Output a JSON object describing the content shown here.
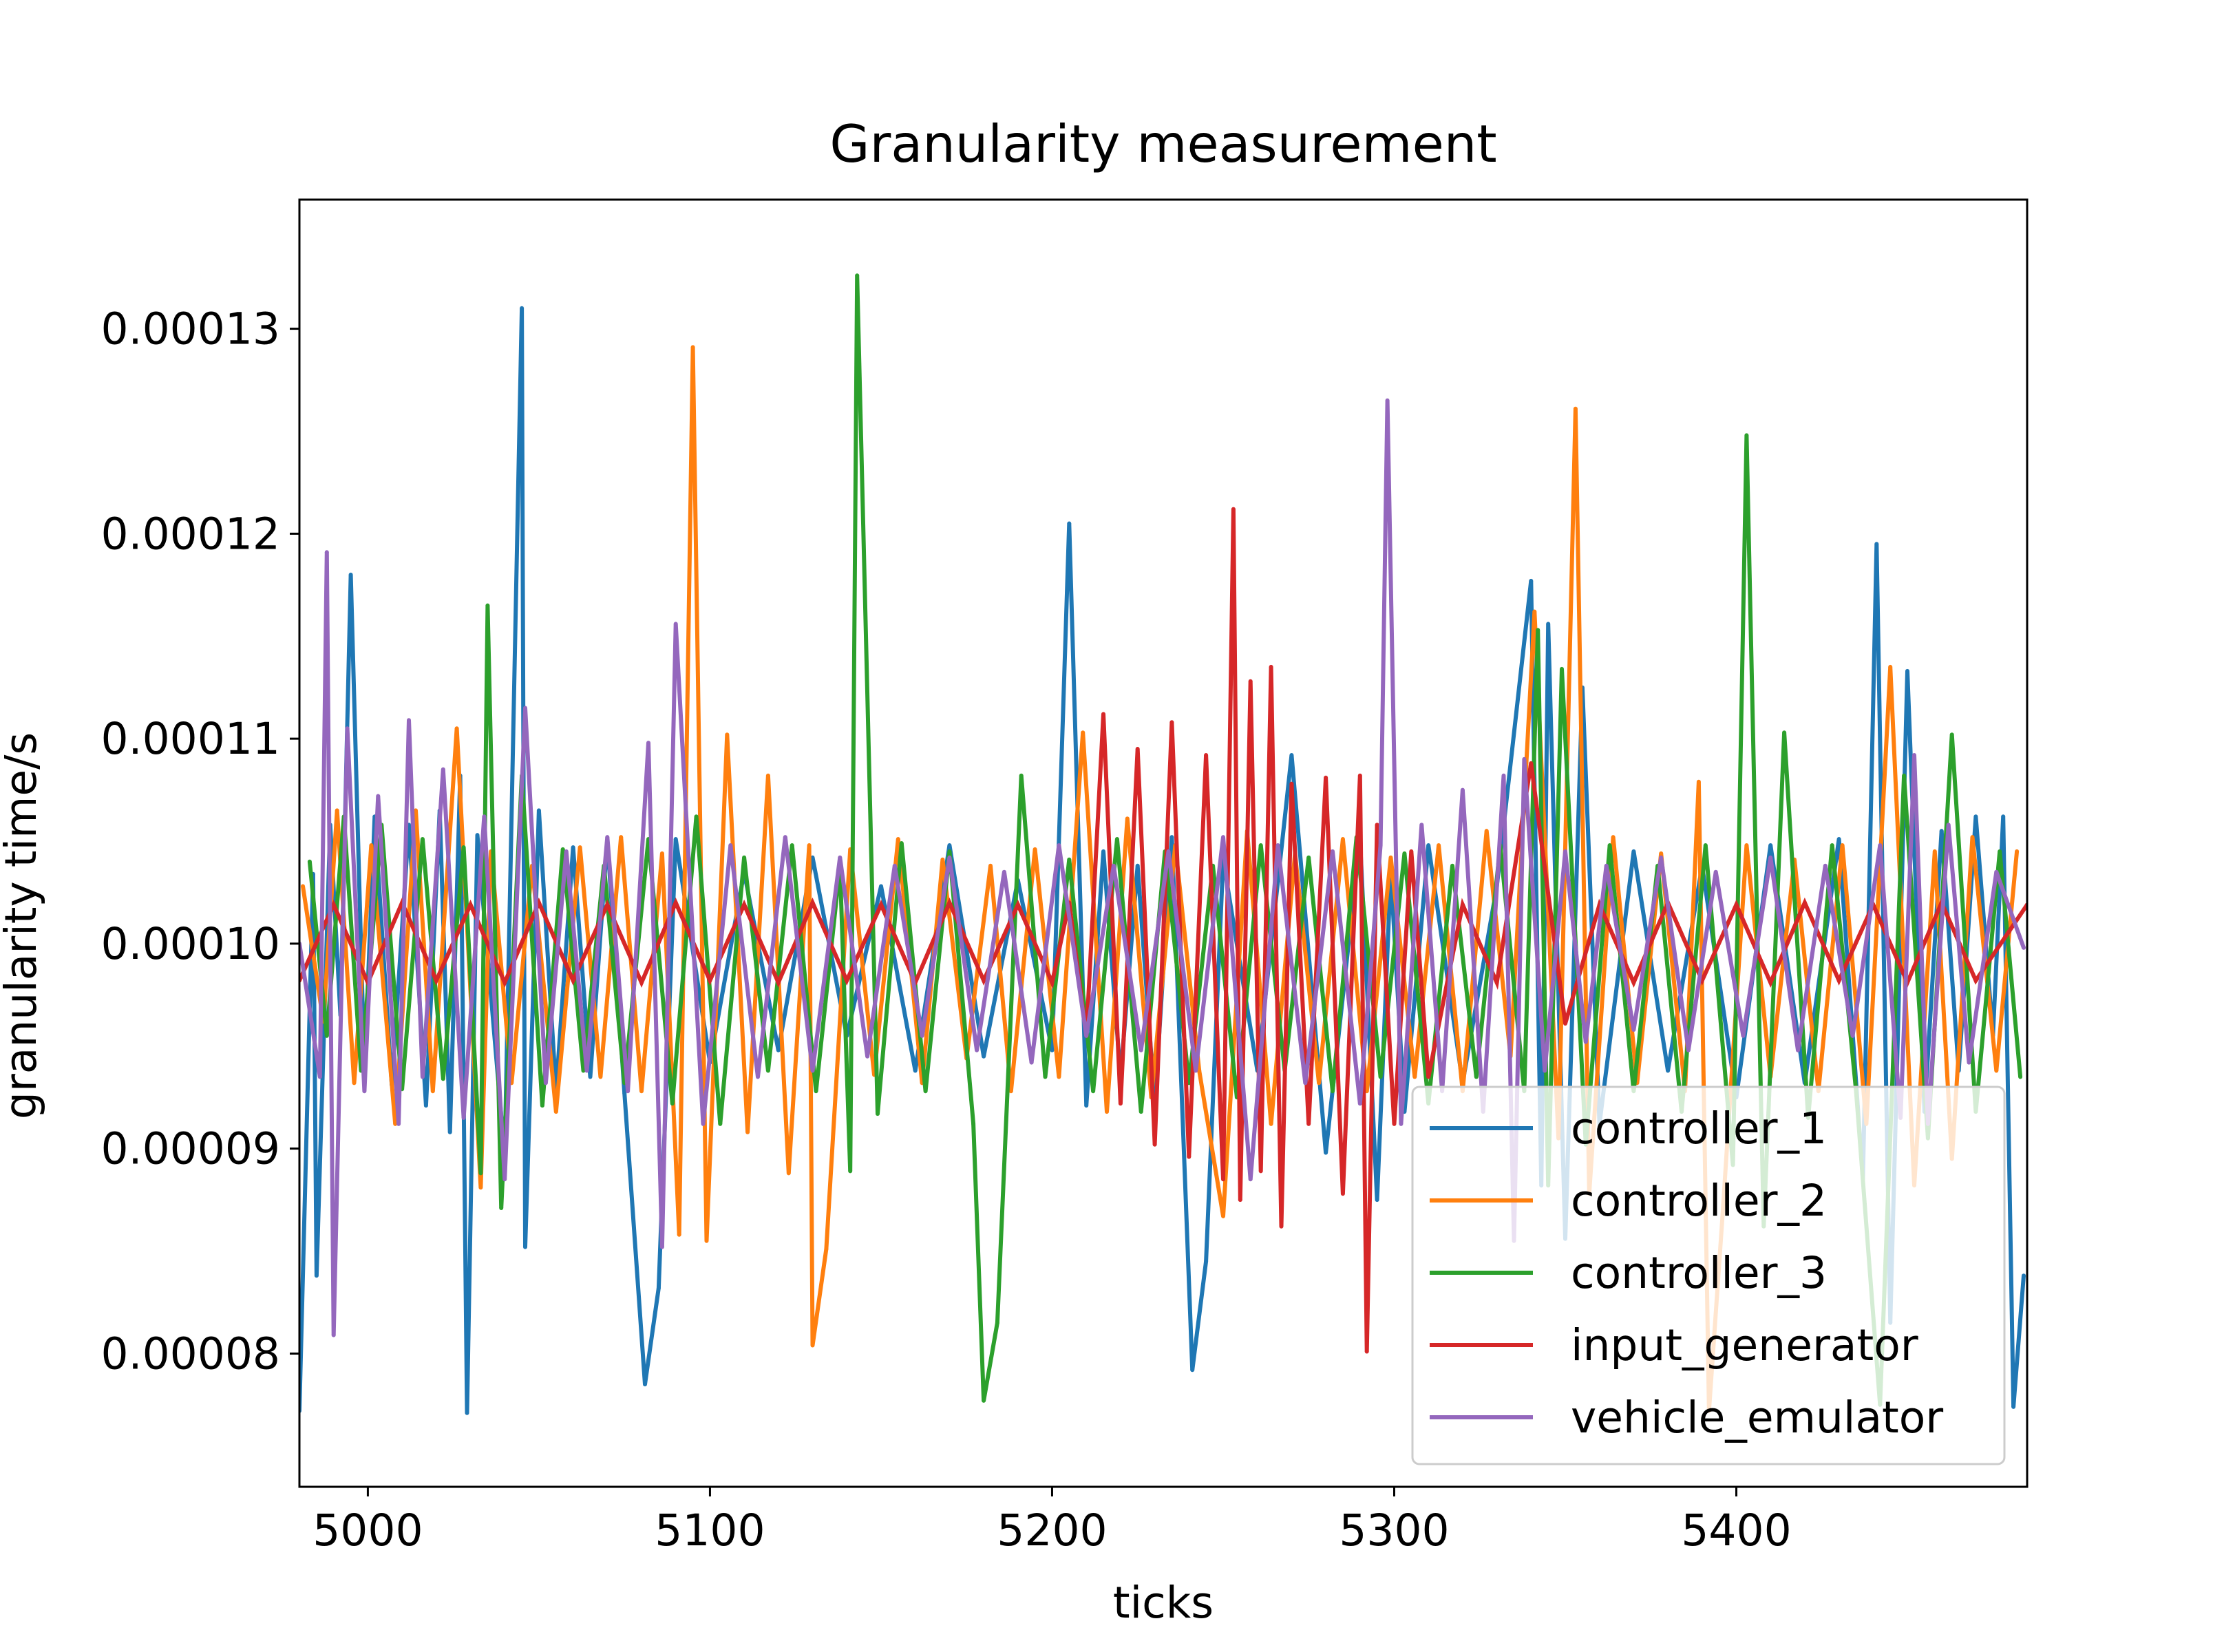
{
  "chart_data": {
    "type": "line",
    "title": "Granularity measurement",
    "xlabel": "ticks",
    "ylabel": "granularity time/s",
    "xlim": [
      4980,
      5485
    ],
    "ylim": [
      7.35e-05,
      0.0001363
    ],
    "xticks": [
      5000,
      5100,
      5200,
      5300,
      5400
    ],
    "xtick_labels": [
      "5000",
      "5100",
      "5200",
      "5300",
      "5400"
    ],
    "yticks": [
      8e-05,
      9e-05,
      0.0001,
      0.00011,
      0.00012,
      0.00013
    ],
    "ytick_labels": [
      "0.00008",
      "0.00009",
      "0.00010",
      "0.00011",
      "0.00012",
      "0.00013"
    ],
    "grid": false,
    "legend_position": "lower-right",
    "series": [
      {
        "name": "controller_1",
        "color": "#1f77b4",
        "x": [
          4980,
          4984,
          4985,
          4989,
          4992,
          4995,
          4999,
          5002,
          5007,
          5012,
          5017,
          5021,
          5024,
          5027,
          5029,
          5032,
          5040,
          5045,
          5046,
          5050,
          5055,
          5060,
          5065,
          5070,
          5075,
          5081,
          5085,
          5090,
          5100,
          5110,
          5120,
          5130,
          5140,
          5150,
          5160,
          5170,
          5180,
          5190,
          5200,
          5205,
          5210,
          5215,
          5220,
          5225,
          5230,
          5235,
          5241,
          5245,
          5250,
          5260,
          5270,
          5280,
          5290,
          5295,
          5299,
          5303,
          5310,
          5320,
          5330,
          5340,
          5343,
          5345,
          5350,
          5355,
          5360,
          5370,
          5380,
          5390,
          5400,
          5410,
          5420,
          5430,
          5437,
          5441,
          5445,
          5450,
          5455,
          5460,
          5465,
          5470,
          5475,
          5478,
          5481,
          5484
        ],
        "y": [
          7.72e-05,
          0.0001034,
          8.38e-05,
          0.0001058,
          9.65e-05,
          0.000118,
          9.38e-05,
          0.0001062,
          9.31e-05,
          0.0001058,
          9.21e-05,
          0.0001065,
          9.08e-05,
          0.0001082,
          7.71e-05,
          0.0001053,
          8.96e-05,
          0.000131,
          8.52e-05,
          0.0001065,
          9.28e-05,
          0.0001047,
          9.35e-05,
          0.0001051,
          9.27e-05,
          7.85e-05,
          8.32e-05,
          0.0001051,
          9.42e-05,
          0.0001035,
          9.48e-05,
          0.0001042,
          9.55e-05,
          0.0001028,
          9.38e-05,
          0.0001048,
          9.45e-05,
          0.0001031,
          9.48e-05,
          0.0001205,
          9.21e-05,
          0.0001045,
          9.35e-05,
          0.0001038,
          9.22e-05,
          0.0001052,
          7.92e-05,
          8.45e-05,
          0.0001041,
          9.38e-05,
          0.0001092,
          8.98e-05,
          0.0001051,
          8.75e-05,
          0.0001035,
          9.18e-05,
          0.0001048,
          9.32e-05,
          0.0001028,
          0.0001177,
          8.82e-05,
          0.0001156,
          8.56e-05,
          0.0001125,
          9.12e-05,
          0.0001045,
          9.38e-05,
          0.0001038,
          9.25e-05,
          0.0001048,
          9.32e-05,
          0.0001051,
          8.85e-05,
          0.0001195,
          8.15e-05,
          0.0001133,
          9.18e-05,
          0.0001055,
          9.38e-05,
          0.0001062,
          9.55e-05,
          0.0001062,
          7.74e-05,
          8.38e-05
        ]
      },
      {
        "name": "controller_2",
        "color": "#ff7f0e",
        "x": [
          4981,
          4987,
          4991,
          4996,
          5001,
          5008,
          5014,
          5019,
          5026,
          5033,
          5036,
          5042,
          5048,
          5055,
          5062,
          5068,
          5074,
          5080,
          5086,
          5091,
          5095,
          5099,
          5105,
          5111,
          5117,
          5123,
          5129,
          5130,
          5134,
          5141,
          5148,
          5155,
          5162,
          5168,
          5175,
          5182,
          5188,
          5195,
          5202,
          5209,
          5216,
          5222,
          5229,
          5236,
          5243,
          5250,
          5257,
          5264,
          5271,
          5278,
          5285,
          5292,
          5299,
          5306,
          5313,
          5320,
          5327,
          5334,
          5341,
          5348,
          5353,
          5357,
          5364,
          5371,
          5378,
          5385,
          5389,
          5392,
          5396,
          5403,
          5410,
          5417,
          5424,
          5431,
          5438,
          5445,
          5452,
          5458,
          5463,
          5469,
          5476,
          5482
        ],
        "y": [
          0.0001028,
          9.62e-05,
          0.0001065,
          9.32e-05,
          0.0001048,
          9.12e-05,
          0.0001065,
          9.28e-05,
          0.0001105,
          8.81e-05,
          0.0001045,
          9.32e-05,
          0.0001038,
          9.18e-05,
          0.0001047,
          9.35e-05,
          0.0001052,
          9.28e-05,
          0.0001044,
          8.58e-05,
          0.0001291,
          8.55e-05,
          0.0001102,
          9.08e-05,
          0.0001082,
          8.88e-05,
          0.0001048,
          8.04e-05,
          8.51e-05,
          0.0001046,
          9.36e-05,
          0.0001051,
          9.32e-05,
          0.0001041,
          9.44e-05,
          0.0001038,
          9.28e-05,
          0.0001046,
          9.35e-05,
          0.0001103,
          9.18e-05,
          0.0001061,
          9.25e-05,
          0.0001048,
          9.38e-05,
          8.67e-05,
          0.0001055,
          9.12e-05,
          0.0001044,
          9.32e-05,
          0.0001051,
          9.28e-05,
          0.0001042,
          9.35e-05,
          0.0001048,
          9.28e-05,
          0.0001055,
          9.45e-05,
          0.0001162,
          9.05e-05,
          0.0001261,
          8.78e-05,
          0.0001052,
          9.32e-05,
          0.0001044,
          9.28e-05,
          0.0001079,
          7.72e-05,
          8.68e-05,
          0.0001048,
          9.35e-05,
          0.0001041,
          9.28e-05,
          0.0001048,
          9.12e-05,
          0.0001135,
          8.82e-05,
          0.0001045,
          8.95e-05,
          0.0001052,
          9.38e-05,
          0.0001045
        ]
      },
      {
        "name": "controller_3",
        "color": "#2ca02c",
        "x": [
          4983,
          4988,
          4993,
          4998,
          5004,
          5010,
          5016,
          5022,
          5028,
          5033,
          5035,
          5039,
          5045,
          5051,
          5057,
          5063,
          5069,
          5075,
          5082,
          5089,
          5096,
          5103,
          5110,
          5117,
          5124,
          5131,
          5138,
          5141,
          5143,
          5149,
          5156,
          5163,
          5170,
          5177,
          5180,
          5184,
          5191,
          5198,
          5205,
          5212,
          5219,
          5226,
          5233,
          5240,
          5247,
          5254,
          5261,
          5268,
          5275,
          5282,
          5289,
          5296,
          5303,
          5310,
          5317,
          5324,
          5331,
          5338,
          5342,
          5345,
          5349,
          5356,
          5363,
          5370,
          5377,
          5384,
          5391,
          5399,
          5403,
          5408,
          5414,
          5421,
          5428,
          5435,
          5442,
          5449,
          5456,
          5463,
          5470,
          5477,
          5483
        ],
        "y": [
          0.000104,
          9.55e-05,
          0.0001062,
          9.38e-05,
          0.0001058,
          9.29e-05,
          0.0001051,
          9.34e-05,
          0.0001047,
          8.88e-05,
          0.0001165,
          8.71e-05,
          0.0001082,
          9.21e-05,
          0.0001046,
          9.38e-05,
          0.0001038,
          9.32e-05,
          0.0001051,
          9.22e-05,
          0.0001062,
          9.12e-05,
          0.0001042,
          9.38e-05,
          0.0001048,
          9.28e-05,
          0.0001038,
          8.89e-05,
          0.0001326,
          9.17e-05,
          0.0001049,
          9.28e-05,
          0.0001045,
          9.12e-05,
          7.77e-05,
          8.15e-05,
          0.0001082,
          9.35e-05,
          0.0001041,
          9.28e-05,
          0.0001051,
          9.18e-05,
          0.0001045,
          9.32e-05,
          0.0001038,
          9.25e-05,
          0.0001048,
          9.38e-05,
          0.0001042,
          9.28e-05,
          0.0001052,
          9.35e-05,
          0.0001044,
          9.22e-05,
          0.0001038,
          9.35e-05,
          0.0001048,
          9.28e-05,
          0.0001153,
          8.82e-05,
          0.0001134,
          9.02e-05,
          0.0001048,
          9.28e-05,
          0.0001038,
          9.18e-05,
          0.0001048,
          8.92e-05,
          0.0001248,
          8.62e-05,
          0.0001103,
          9.15e-05,
          0.0001048,
          9.28e-05,
          7.75e-05,
          0.0001082,
          9.05e-05,
          0.0001102,
          9.18e-05,
          0.0001045,
          9.35e-05
        ]
      },
      {
        "name": "input_generator",
        "color": "#d62728",
        "x": [
          4980,
          4990,
          5000,
          5010,
          5020,
          5030,
          5040,
          5050,
          5060,
          5070,
          5080,
          5090,
          5100,
          5110,
          5120,
          5130,
          5140,
          5150,
          5160,
          5170,
          5180,
          5190,
          5200,
          5205,
          5210,
          5215,
          5220,
          5225,
          5230,
          5235,
          5240,
          5245,
          5250,
          5253,
          5255,
          5258,
          5261,
          5264,
          5267,
          5270,
          5275,
          5280,
          5285,
          5290,
          5292,
          5295,
          5300,
          5305,
          5310,
          5320,
          5330,
          5340,
          5350,
          5360,
          5370,
          5380,
          5390,
          5400,
          5410,
          5420,
          5430,
          5440,
          5450,
          5460,
          5470,
          5485
        ],
        "y": [
          9.82e-05,
          0.0001019,
          9.81e-05,
          0.000102,
          9.82e-05,
          0.0001019,
          9.81e-05,
          0.000102,
          9.82e-05,
          0.0001019,
          9.81e-05,
          0.000102,
          9.82e-05,
          0.0001019,
          9.81e-05,
          0.000102,
          9.82e-05,
          0.0001019,
          9.81e-05,
          0.000102,
          9.82e-05,
          0.0001019,
          9.81e-05,
          0.000102,
          9.55e-05,
          0.0001112,
          9.22e-05,
          0.0001095,
          9.02e-05,
          0.0001108,
          8.96e-05,
          0.0001092,
          8.85e-05,
          0.0001212,
          8.75e-05,
          0.0001128,
          8.89e-05,
          0.0001135,
          8.62e-05,
          0.0001078,
          9.12e-05,
          0.0001081,
          8.78e-05,
          0.0001082,
          8.01e-05,
          0.0001058,
          9.12e-05,
          0.0001045,
          9.35e-05,
          0.0001019,
          9.81e-05,
          0.0001088,
          9.61e-05,
          0.0001019,
          9.81e-05,
          0.000102,
          9.82e-05,
          0.0001019,
          9.81e-05,
          0.000102,
          9.82e-05,
          0.0001019,
          9.81e-05,
          0.000102,
          9.82e-05,
          0.0001019
        ]
      },
      {
        "name": "vehicle_emulator",
        "color": "#9467bd",
        "x": [
          4980,
          4986,
          4988,
          4990,
          4994,
          4999,
          5003,
          5009,
          5012,
          5016,
          5022,
          5028,
          5034,
          5040,
          5046,
          5052,
          5058,
          5064,
          5070,
          5076,
          5082,
          5086,
          5090,
          5098,
          5106,
          5114,
          5122,
          5130,
          5138,
          5146,
          5154,
          5162,
          5170,
          5178,
          5186,
          5194,
          5202,
          5210,
          5218,
          5226,
          5234,
          5242,
          5250,
          5258,
          5266,
          5274,
          5282,
          5290,
          5296,
          5298,
          5302,
          5308,
          5314,
          5320,
          5326,
          5332,
          5335,
          5338,
          5344,
          5350,
          5356,
          5362,
          5370,
          5378,
          5386,
          5394,
          5402,
          5410,
          5418,
          5426,
          5434,
          5442,
          5448,
          5452,
          5456,
          5462,
          5468,
          5476,
          5484
        ],
        "y": [
          0.0001,
          9.35e-05,
          0.0001191,
          8.09e-05,
          0.0001105,
          9.28e-05,
          0.0001072,
          9.12e-05,
          0.0001109,
          9.35e-05,
          0.0001085,
          9.15e-05,
          0.0001062,
          8.85e-05,
          0.0001115,
          9.32e-05,
          0.0001045,
          9.38e-05,
          0.0001052,
          9.28e-05,
          0.0001098,
          8.52e-05,
          0.0001156,
          9.12e-05,
          0.0001048,
          9.35e-05,
          0.0001052,
          9.38e-05,
          0.0001042,
          9.45e-05,
          0.0001038,
          9.55e-05,
          0.0001042,
          9.48e-05,
          0.0001035,
          9.42e-05,
          0.0001048,
          9.55e-05,
          0.0001038,
          9.48e-05,
          0.0001045,
          9.38e-05,
          0.0001052,
          8.85e-05,
          0.0001048,
          9.32e-05,
          0.0001045,
          9.22e-05,
          0.0001048,
          0.0001265,
          9.12e-05,
          0.0001058,
          9.28e-05,
          0.0001075,
          9.18e-05,
          0.0001082,
          8.55e-05,
          0.000109,
          9.38e-05,
          0.0001045,
          9.52e-05,
          0.0001038,
          9.58e-05,
          0.0001042,
          9.48e-05,
          0.0001035,
          9.55e-05,
          0.0001042,
          9.48e-05,
          0.0001038,
          9.55e-05,
          0.0001048,
          9.15e-05,
          0.0001092,
          9.12e-05,
          0.0001058,
          9.42e-05,
          0.0001035,
          9.98e-05
        ]
      }
    ]
  }
}
